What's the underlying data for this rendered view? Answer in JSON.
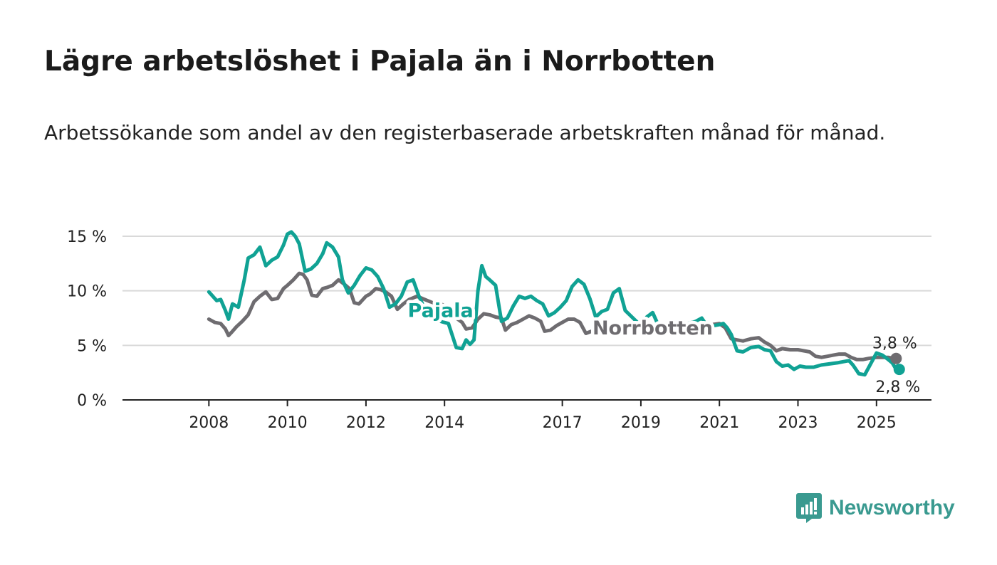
{
  "title": "Lägre arbetslöshet i Pajala än i Norrbotten",
  "subtitle": "Arbetssökande som andel av den registerbaserade arbetskraften månad för månad.",
  "brand": "Newsworthy",
  "colors": {
    "pajala": "#10a294",
    "norrbotten": "#6e6c70",
    "grid": "#d9d9d9",
    "axis": "#222222"
  },
  "chart_data": {
    "type": "line",
    "x_unit": "decimal year",
    "ylim": [
      0,
      15
    ],
    "xlim": [
      2005.8,
      2026.4
    ],
    "y_ticks": [
      {
        "value": 0,
        "label": "0 %"
      },
      {
        "value": 5,
        "label": "5 %"
      },
      {
        "value": 10,
        "label": "10 %"
      },
      {
        "value": 15,
        "label": "15 %"
      }
    ],
    "x_ticks": [
      {
        "value": 2008,
        "label": "2008"
      },
      {
        "value": 2010,
        "label": "2010"
      },
      {
        "value": 2012,
        "label": "2012"
      },
      {
        "value": 2014,
        "label": "2014"
      },
      {
        "value": 2017,
        "label": "2017"
      },
      {
        "value": 2019,
        "label": "2019"
      },
      {
        "value": 2021,
        "label": "2021"
      },
      {
        "value": 2023,
        "label": "2023"
      },
      {
        "value": 2025,
        "label": "2025"
      }
    ],
    "grid": true,
    "series": [
      {
        "key": "norrbotten",
        "name": "Norrbotten",
        "color": "#6e6c70",
        "end_label": "3,8 %",
        "x": [
          2008.0,
          2008.15,
          2008.3,
          2008.42,
          2008.5,
          2008.58,
          2008.7,
          2008.85,
          2009.0,
          2009.15,
          2009.3,
          2009.45,
          2009.6,
          2009.75,
          2009.9,
          2010.0,
          2010.15,
          2010.3,
          2010.4,
          2010.5,
          2010.62,
          2010.75,
          2010.9,
          2011.0,
          2011.15,
          2011.3,
          2011.45,
          2011.58,
          2011.7,
          2011.82,
          2012.0,
          2012.1,
          2012.25,
          2012.38,
          2012.5,
          2012.65,
          2012.8,
          2012.95,
          2013.1,
          2013.3,
          2013.5,
          2013.7,
          2013.9,
          2014.1,
          2014.3,
          2014.45,
          2014.55,
          2014.7,
          2014.85,
          2015.0,
          2015.15,
          2015.3,
          2015.45,
          2015.55,
          2015.7,
          2015.85,
          2016.0,
          2016.15,
          2016.3,
          2016.45,
          2016.55,
          2016.7,
          2016.85,
          2017.0,
          2017.15,
          2017.3,
          2017.45,
          2017.6,
          2017.75,
          2017.9,
          2018.0,
          2018.15,
          2018.3,
          2018.45,
          2018.6,
          2018.8,
          2019.0,
          2019.2,
          2019.4,
          2019.6,
          2019.8,
          2020.0,
          2020.2,
          2020.4,
          2020.6,
          2020.8,
          2021.0,
          2021.15,
          2021.3,
          2021.45,
          2021.6,
          2021.8,
          2022.0,
          2022.15,
          2022.3,
          2022.45,
          2022.6,
          2022.8,
          2023.0,
          2023.15,
          2023.3,
          2023.45,
          2023.6,
          2023.75,
          2023.9,
          2024.05,
          2024.2,
          2024.35,
          2024.5,
          2024.65,
          2024.8,
          2025.0,
          2025.15,
          2025.3,
          2025.45,
          2025.5
        ],
        "y": [
          7.4,
          7.1,
          7.0,
          6.5,
          5.9,
          6.2,
          6.7,
          7.2,
          7.8,
          9.0,
          9.5,
          9.9,
          9.2,
          9.3,
          10.2,
          10.5,
          11.0,
          11.6,
          11.5,
          11.0,
          9.6,
          9.5,
          10.2,
          10.3,
          10.5,
          11.0,
          10.6,
          10.2,
          8.9,
          8.8,
          9.5,
          9.7,
          10.2,
          10.1,
          9.9,
          9.5,
          8.3,
          8.8,
          9.2,
          9.5,
          9.2,
          8.9,
          8.8,
          8.5,
          7.5,
          7.1,
          6.5,
          6.6,
          7.4,
          7.9,
          7.8,
          7.6,
          7.5,
          6.4,
          6.9,
          7.1,
          7.4,
          7.7,
          7.5,
          7.2,
          6.3,
          6.4,
          6.8,
          7.1,
          7.4,
          7.4,
          7.1,
          6.1,
          6.3,
          6.6,
          6.8,
          7.0,
          6.9,
          6.6,
          6.8,
          7.0,
          7.0,
          6.9,
          6.8,
          6.9,
          6.9,
          7.0,
          6.8,
          6.9,
          7.0,
          6.9,
          7.0,
          6.6,
          5.6,
          5.5,
          5.4,
          5.6,
          5.7,
          5.3,
          5.0,
          4.5,
          4.7,
          4.6,
          4.6,
          4.5,
          4.4,
          4.0,
          3.9,
          4.0,
          4.1,
          4.2,
          4.2,
          3.9,
          3.7,
          3.7,
          3.8,
          3.9,
          3.9,
          3.9,
          3.8,
          3.8
        ]
      },
      {
        "key": "pajala",
        "name": "Pajala",
        "color": "#10a294",
        "end_label": "2,8 %",
        "x": [
          2008.0,
          2008.1,
          2008.2,
          2008.3,
          2008.42,
          2008.5,
          2008.6,
          2008.75,
          2008.9,
          2009.0,
          2009.15,
          2009.3,
          2009.45,
          2009.6,
          2009.75,
          2009.9,
          2010.0,
          2010.1,
          2010.2,
          2010.3,
          2010.45,
          2010.6,
          2010.75,
          2010.9,
          2011.0,
          2011.15,
          2011.3,
          2011.4,
          2011.55,
          2011.7,
          2011.85,
          2012.0,
          2012.15,
          2012.3,
          2012.45,
          2012.6,
          2012.75,
          2012.9,
          2013.05,
          2013.2,
          2013.35,
          2013.5,
          2013.7,
          2013.9,
          2014.1,
          2014.3,
          2014.45,
          2014.55,
          2014.65,
          2014.75,
          2014.85,
          2014.95,
          2015.05,
          2015.15,
          2015.3,
          2015.45,
          2015.6,
          2015.75,
          2015.9,
          2016.05,
          2016.2,
          2016.35,
          2016.5,
          2016.65,
          2016.8,
          2016.95,
          2017.1,
          2017.25,
          2017.4,
          2017.55,
          2017.7,
          2017.85,
          2018.0,
          2018.15,
          2018.3,
          2018.45,
          2018.6,
          2018.8,
          2019.0,
          2019.15,
          2019.3,
          2019.45,
          2019.6,
          2019.8,
          2020.0,
          2020.2,
          2020.4,
          2020.55,
          2020.7,
          2020.85,
          2021.0,
          2021.1,
          2021.2,
          2021.3,
          2021.45,
          2021.6,
          2021.8,
          2022.0,
          2022.15,
          2022.3,
          2022.45,
          2022.6,
          2022.75,
          2022.9,
          2023.05,
          2023.2,
          2023.4,
          2023.6,
          2023.8,
          2024.0,
          2024.15,
          2024.3,
          2024.4,
          2024.55,
          2024.7,
          2024.85,
          2025.0,
          2025.15,
          2025.3,
          2025.4,
          2025.5,
          2025.58
        ],
        "y": [
          9.9,
          9.5,
          9.1,
          9.2,
          8.2,
          7.4,
          8.8,
          8.5,
          11.0,
          13.0,
          13.3,
          14.0,
          12.3,
          12.8,
          13.1,
          14.2,
          15.2,
          15.4,
          15.0,
          14.3,
          11.8,
          12.0,
          12.5,
          13.4,
          14.4,
          14.0,
          13.1,
          11.0,
          9.8,
          10.5,
          11.4,
          12.1,
          11.9,
          11.3,
          10.2,
          8.5,
          8.8,
          9.5,
          10.8,
          11.0,
          9.5,
          8.3,
          7.7,
          7.2,
          7.0,
          4.8,
          4.7,
          5.5,
          5.1,
          5.5,
          10.0,
          12.3,
          11.3,
          11.0,
          10.5,
          7.2,
          7.5,
          8.6,
          9.5,
          9.3,
          9.5,
          9.1,
          8.8,
          7.7,
          8.0,
          8.5,
          9.1,
          10.4,
          11.0,
          10.6,
          9.3,
          7.6,
          8.1,
          8.3,
          9.8,
          10.2,
          8.2,
          7.5,
          6.8,
          7.6,
          8.0,
          6.8,
          6.8,
          6.9,
          6.9,
          7.0,
          7.2,
          7.5,
          6.7,
          6.8,
          6.9,
          7.0,
          6.6,
          6.0,
          4.5,
          4.4,
          4.8,
          4.9,
          4.6,
          4.5,
          3.5,
          3.1,
          3.2,
          2.8,
          3.1,
          3.0,
          3.0,
          3.2,
          3.3,
          3.4,
          3.5,
          3.6,
          3.2,
          2.4,
          2.3,
          3.3,
          4.3,
          4.1,
          3.7,
          3.4,
          2.8,
          2.8
        ]
      }
    ],
    "line_labels": [
      {
        "text": "Pajala",
        "series": "pajala",
        "at_x": 2013.9,
        "at_y": 7.6
      },
      {
        "text": "Norrbotten",
        "series": "norrbotten",
        "at_x": 2019.3,
        "at_y": 6.0
      }
    ]
  }
}
